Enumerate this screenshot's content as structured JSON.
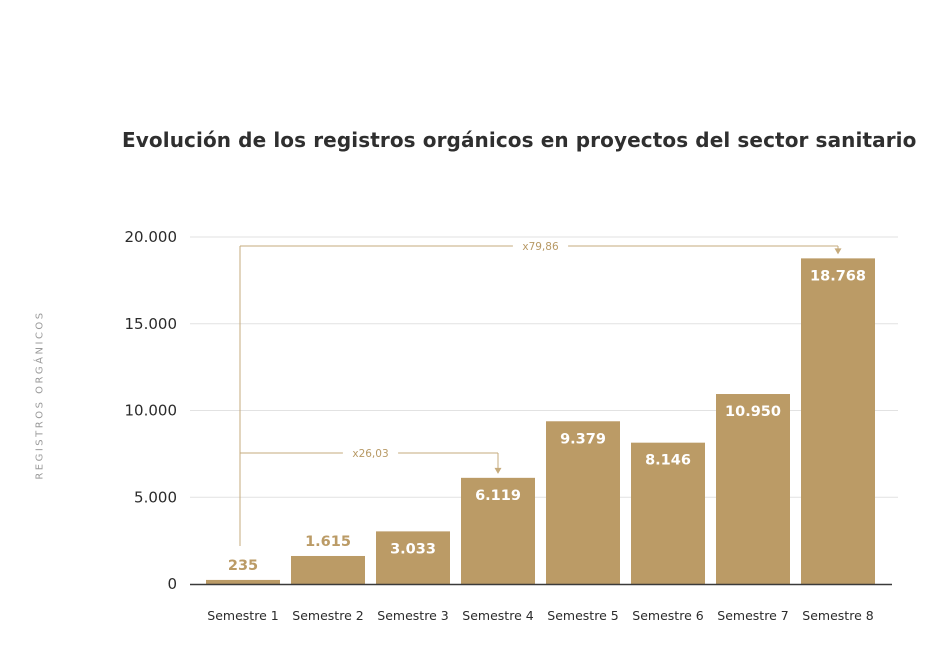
{
  "chart_data": {
    "type": "bar",
    "title": "Evolución de los registros orgánicos en proyectos del sector sanitario",
    "ylabel": "REGISTROS ORGÁNICOS",
    "xlabel": "",
    "categories": [
      "Semestre 1",
      "Semestre 2",
      "Semestre 3",
      "Semestre 4",
      "Semestre 5",
      "Semestre 6",
      "Semestre 7",
      "Semestre 8"
    ],
    "values": [
      235,
      1615,
      3033,
      6119,
      9379,
      8146,
      10950,
      18768
    ],
    "data_labels": [
      "235",
      "1.615",
      "3.033",
      "6.119",
      "9.379",
      "8.146",
      "10.950",
      "18.768"
    ],
    "ylim": [
      0,
      20000
    ],
    "yticks": [
      0,
      5000,
      10000,
      15000,
      20000
    ],
    "ytick_labels": [
      "0",
      "5.000",
      "10.000",
      "15.000",
      "20.000"
    ],
    "grid": true,
    "bar_color": "#bb9b66",
    "annotations": [
      {
        "text": "x26,03",
        "from_category": 0,
        "to_category": 3
      },
      {
        "text": "x79,86",
        "from_category": 0,
        "to_category": 7
      }
    ]
  }
}
